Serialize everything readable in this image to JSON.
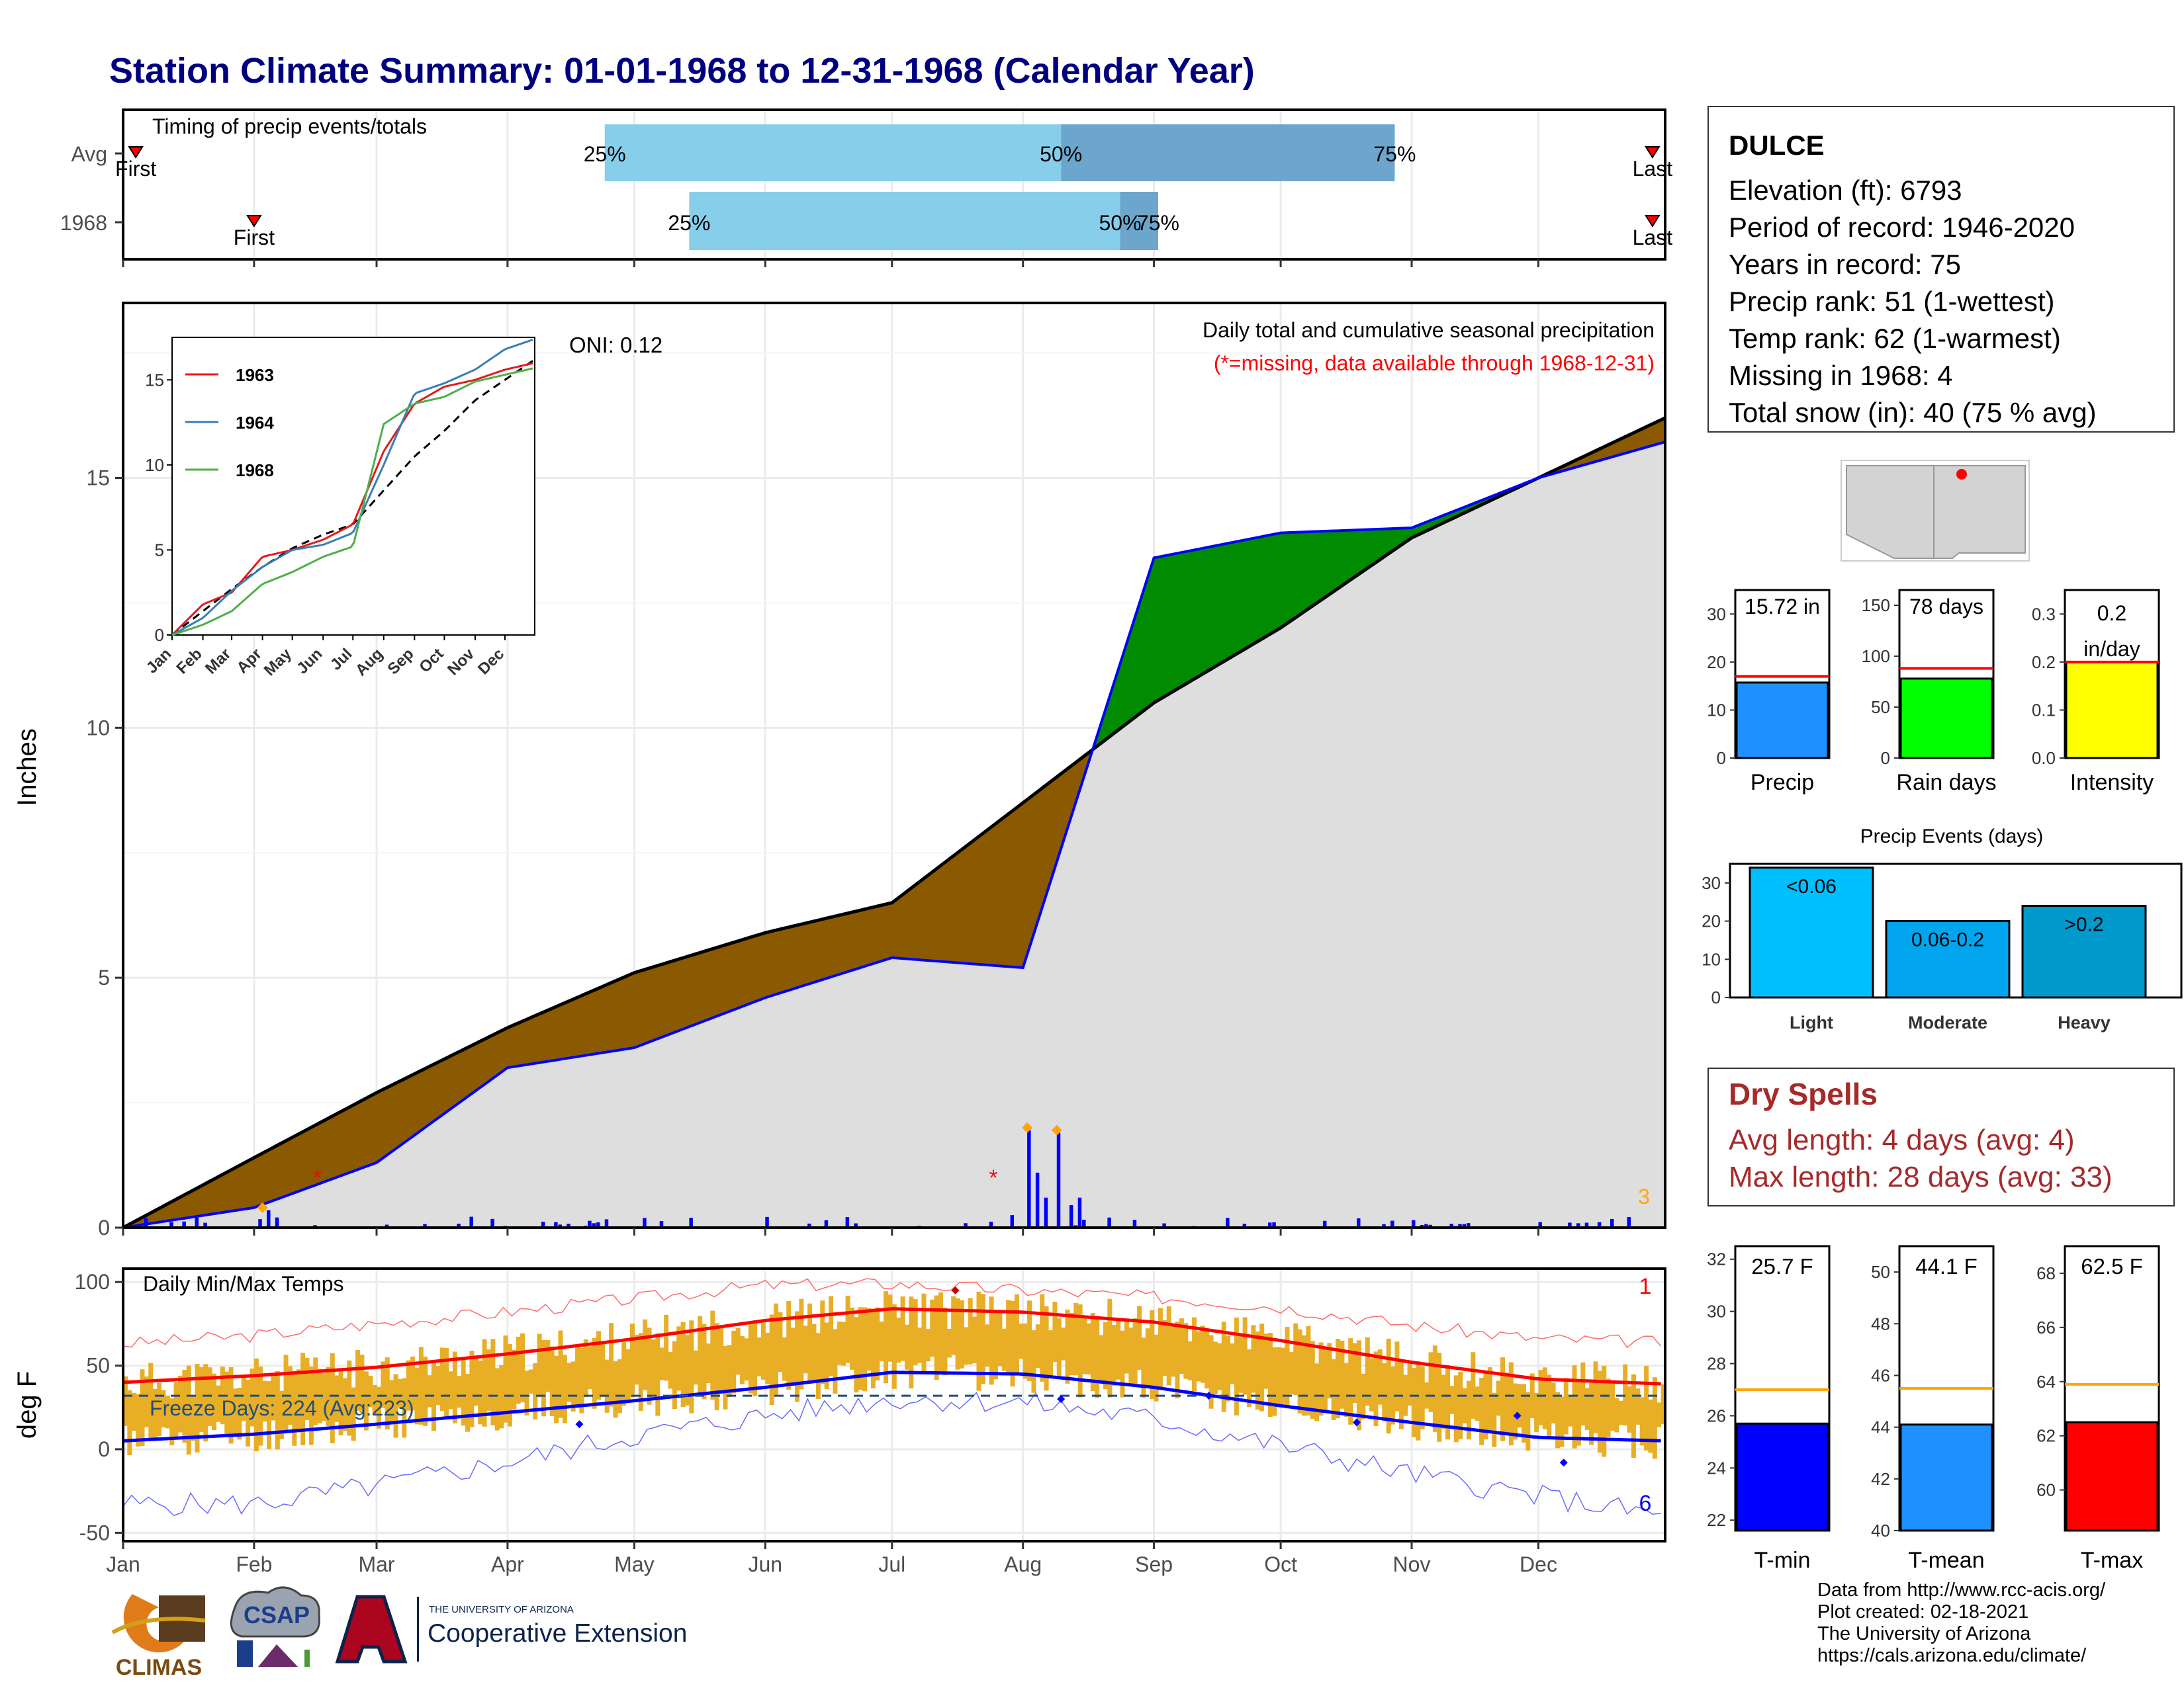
{
  "title": "Station Climate Summary: 01-01-1968 to 12-31-1968 (Calendar Year)",
  "station": {
    "name": "DULCE",
    "stats": [
      "Elevation (ft): 6793",
      "Period of record: 1946-2020",
      "Years in record: 75",
      "Precip rank: 51 (1-wettest)",
      "Temp rank: 62 (1-warmest)",
      "Missing in 1968: 4",
      "Total snow (in): 40 (75 % avg)"
    ]
  },
  "timing": {
    "caption": "Timing of precip events/totals",
    "rows": [
      "Avg",
      "1968"
    ],
    "first_label": "First",
    "last_label": "Last",
    "pct_labels": [
      "25%",
      "50%",
      "75%"
    ],
    "avg": {
      "first_day": 3,
      "p25": 114,
      "p50": 222,
      "p75": 301,
      "last_day": 362
    },
    "year": {
      "first_day": 31,
      "p25": 134,
      "p50": 236,
      "p75": 245,
      "last_day": 362
    }
  },
  "month_labels": [
    "Jan",
    "Feb",
    "Mar",
    "Apr",
    "May",
    "Jun",
    "Jul",
    "Aug",
    "Sep",
    "Oct",
    "Nov",
    "Dec"
  ],
  "precip_panel": {
    "ylabel": "Inches",
    "yticks": [
      "0",
      "5",
      "10",
      "15"
    ],
    "oni": "ONI: 0.12",
    "caption": "Daily total and cumulative seasonal precipitation",
    "missing_note": "(*=missing, data available through 1968-12-31)",
    "right_count": "3",
    "colors": {
      "deficit": "#8B5A00",
      "surplus": "#008B00",
      "normal_fill": "#DEDEDE",
      "daily_bars": "#0000FF"
    }
  },
  "inset": {
    "yticks": [
      "0",
      "5",
      "10",
      "15"
    ],
    "xticks": [
      "Jan",
      "Feb",
      "Mar",
      "Apr",
      "May",
      "Jun",
      "Jul",
      "Aug",
      "Sep",
      "Oct",
      "Nov",
      "Dec"
    ],
    "series": [
      {
        "name": "1963",
        "color": "#E41A1C"
      },
      {
        "name": "1964",
        "color": "#377EB8"
      },
      {
        "name": "1968",
        "color": "#4DAF4A"
      }
    ]
  },
  "temp_panel": {
    "ylabel": "deg F",
    "yticks": [
      "100",
      "50",
      "0",
      "-50"
    ],
    "caption": "Daily Min/Max Temps",
    "freeze": "Freeze Days: 224 (Avg:223)",
    "count_high": "1",
    "count_low": "6"
  },
  "precip_bars": {
    "labels": [
      "Precip",
      "Rain days",
      "Intensity"
    ],
    "values_text": [
      "15.72 in",
      "78 days",
      "0.2 in/day"
    ],
    "colors": [
      "#1E90FF",
      "#00FF00",
      "#FFFF00"
    ],
    "yticks": [
      [
        "0",
        "10",
        "20",
        "30"
      ],
      [
        "0",
        "50",
        "100",
        "150"
      ],
      [
        "0.0",
        "0.1",
        "0.2",
        "0.3"
      ]
    ]
  },
  "events": {
    "title": "Precip Events (days)",
    "categories": [
      "Light",
      "Moderate",
      "Heavy"
    ],
    "bar_labels": [
      "<0.06",
      "0.06-0.2",
      ">0.2"
    ],
    "yticks": [
      "0",
      "10",
      "20",
      "30"
    ],
    "colors": [
      "#00BFFF",
      "#00A5EE",
      "#0099CC"
    ]
  },
  "dry_spells": {
    "title": "Dry Spells",
    "avg": "Avg length: 4 days (avg: 4)",
    "max": "Max length: 28 days (avg: 33)"
  },
  "temp_bars": {
    "labels": [
      "T-min",
      "T-mean",
      "T-max"
    ],
    "values_text": [
      "25.7 F",
      "44.1 F",
      "62.5 F"
    ],
    "colors": [
      "#0000FF",
      "#1E90FF",
      "#FF0000"
    ],
    "yticks": [
      [
        "22",
        "24",
        "26",
        "28",
        "30",
        "32"
      ],
      [
        "40",
        "42",
        "44",
        "46",
        "48",
        "50"
      ],
      [
        "60",
        "62",
        "64",
        "66",
        "68"
      ]
    ]
  },
  "credits": [
    "Data from http://www.rcc-acis.org/",
    "Plot created: 02-18-2021",
    "The University of Arizona",
    "https://cals.arizona.edu/climate/"
  ],
  "logos": {
    "climas": "CLIMAS",
    "csap": "CSAP",
    "ua_small": "THE UNIVERSITY OF ARIZONA",
    "ua_big": "Cooperative Extension"
  },
  "chart_data": [
    {
      "type": "bar",
      "title": "Timing of precip events/totals",
      "categories": [
        "Avg",
        "1968"
      ],
      "series": [
        {
          "name": "First",
          "values": [
            3,
            31
          ]
        },
        {
          "name": "25%",
          "values": [
            114,
            134
          ]
        },
        {
          "name": "50%",
          "values": [
            222,
            236
          ]
        },
        {
          "name": "75%",
          "values": [
            301,
            245
          ]
        },
        {
          "name": "Last",
          "values": [
            362,
            362
          ]
        }
      ]
    },
    {
      "type": "area",
      "title": "Daily total and cumulative seasonal precipitation",
      "ylabel": "Inches",
      "ylim": [
        0,
        18.5
      ],
      "x": [
        "Jan",
        "Feb",
        "Mar",
        "Apr",
        "May",
        "Jun",
        "Jul",
        "Aug",
        "Sep",
        "Oct",
        "Nov",
        "Dec",
        "Dec31"
      ],
      "series": [
        {
          "name": "Average cumulative",
          "values": [
            0,
            1.4,
            2.7,
            4.0,
            5.1,
            5.9,
            6.5,
            8.5,
            10.5,
            12.0,
            13.8,
            15.0,
            16.2
          ]
        },
        {
          "name": "1968 cumulative",
          "values": [
            0,
            0.4,
            1.3,
            3.2,
            3.6,
            4.6,
            5.4,
            5.2,
            13.4,
            13.9,
            14.0,
            15.0,
            15.72
          ]
        }
      ]
    },
    {
      "type": "line",
      "title": "Daily Min/Max Temps",
      "ylabel": "deg F",
      "ylim": [
        -55,
        108
      ],
      "x": [
        "Jan",
        "Feb",
        "Mar",
        "Apr",
        "May",
        "Jun",
        "Jul",
        "Aug",
        "Sep",
        "Oct",
        "Nov",
        "Dec",
        "Dec31"
      ],
      "series": [
        {
          "name": "Avg max",
          "values": [
            40,
            44,
            49,
            57,
            66,
            77,
            84,
            82,
            76,
            65,
            52,
            42,
            39
          ]
        },
        {
          "name": "Avg min",
          "values": [
            5,
            9,
            15,
            22,
            29,
            37,
            46,
            45,
            37,
            26,
            16,
            7,
            5
          ]
        },
        {
          "name": "Record high",
          "values": [
            63,
            68,
            75,
            82,
            90,
            98,
            99,
            95,
            91,
            85,
            74,
            66,
            64
          ]
        },
        {
          "name": "Record low",
          "values": [
            -33,
            -33,
            -22,
            -8,
            8,
            20,
            30,
            28,
            18,
            2,
            -15,
            -28,
            -40
          ]
        }
      ]
    },
    {
      "type": "bar",
      "categories": [
        "Precip",
        "Rain days",
        "Intensity"
      ],
      "series": [
        {
          "name": "1968",
          "values": [
            15.72,
            78,
            0.2
          ]
        },
        {
          "name": "Avg",
          "values": [
            17,
            88,
            0.2
          ]
        }
      ],
      "ylim": [
        [
          0,
          35
        ],
        [
          0,
          165
        ],
        [
          0,
          0.35
        ]
      ]
    },
    {
      "type": "bar",
      "title": "Precip Events (days)",
      "categories": [
        "Light",
        "Moderate",
        "Heavy"
      ],
      "values": [
        34,
        20,
        24
      ],
      "ylim": [
        0,
        35
      ]
    },
    {
      "type": "bar",
      "categories": [
        "T-min",
        "T-mean",
        "T-max"
      ],
      "series": [
        {
          "name": "1968",
          "values": [
            25.7,
            44.1,
            62.5
          ]
        },
        {
          "name": "Avg",
          "values": [
            27.0,
            45.5,
            63.9
          ]
        }
      ],
      "ylim": [
        [
          21.6,
          32.5
        ],
        [
          40,
          51
        ],
        [
          58.5,
          69
        ]
      ]
    }
  ]
}
